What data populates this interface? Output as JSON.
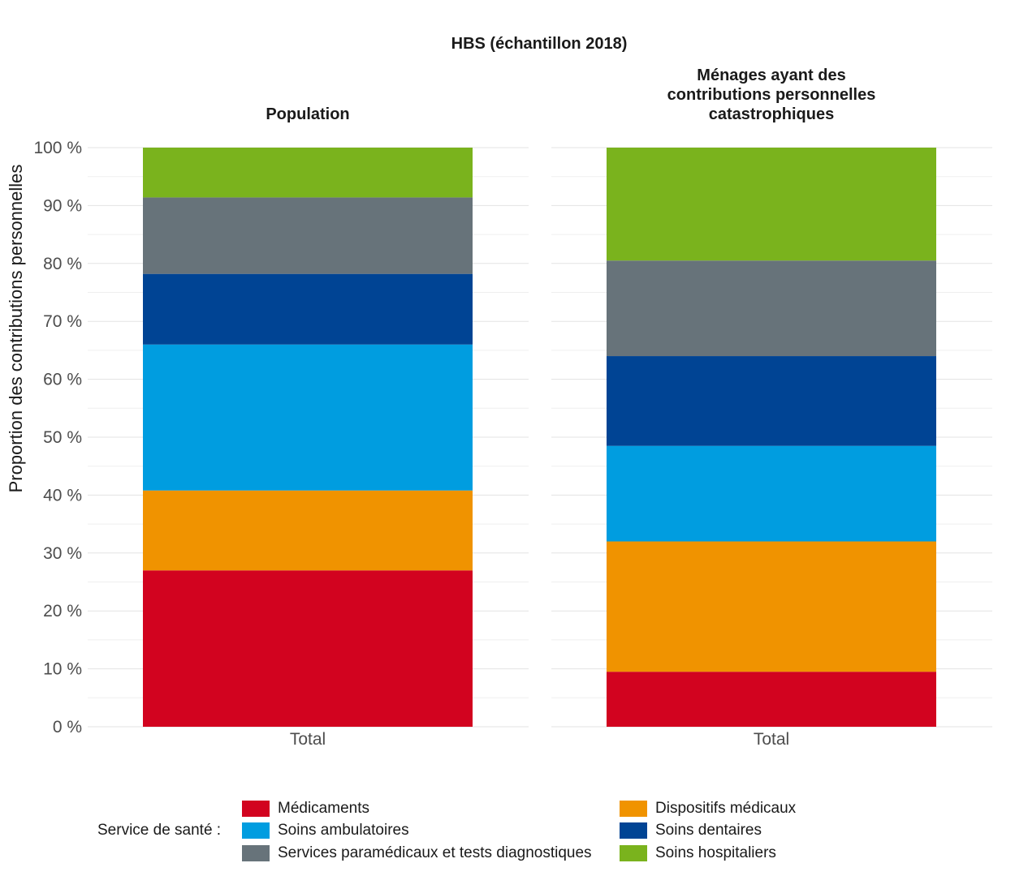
{
  "chart_data": {
    "type": "bar",
    "stacked": true,
    "title": "HBS (échantillon 2018)",
    "ylabel": "Proportion des contributions personnelles",
    "ylim": [
      0,
      100
    ],
    "yticks": [
      "0 %",
      "10 %",
      "20 %",
      "30 %",
      "40 %",
      "50 %",
      "60 %",
      "70 %",
      "80 %",
      "90 %",
      "100 %"
    ],
    "grid": true,
    "legend_title": "Service de santé :",
    "legend_position": "bottom",
    "series_meta": [
      {
        "name": "Médicaments",
        "color": "#d2031f"
      },
      {
        "name": "Dispositifs médicaux",
        "color": "#f09300"
      },
      {
        "name": "Soins ambulatoires",
        "color": "#009de0"
      },
      {
        "name": "Soins dentaires",
        "color": "#004494"
      },
      {
        "name": "Services paramédicaux et tests diagnostiques",
        "color": "#67737a"
      },
      {
        "name": "Soins hospitaliers",
        "color": "#7ab31d"
      }
    ],
    "panels": [
      {
        "title_lines": [
          "Population"
        ],
        "category": "Total",
        "values": [
          27.0,
          13.8,
          25.2,
          12.2,
          13.2,
          8.6
        ]
      },
      {
        "title_lines": [
          "Ménages ayant des",
          "contributions personnelles",
          "catastrophiques"
        ],
        "category": "Total",
        "values": [
          9.5,
          22.5,
          16.5,
          15.5,
          16.5,
          19.5
        ]
      }
    ],
    "legend_order": [
      0,
      1,
      2,
      3,
      4,
      5
    ]
  }
}
